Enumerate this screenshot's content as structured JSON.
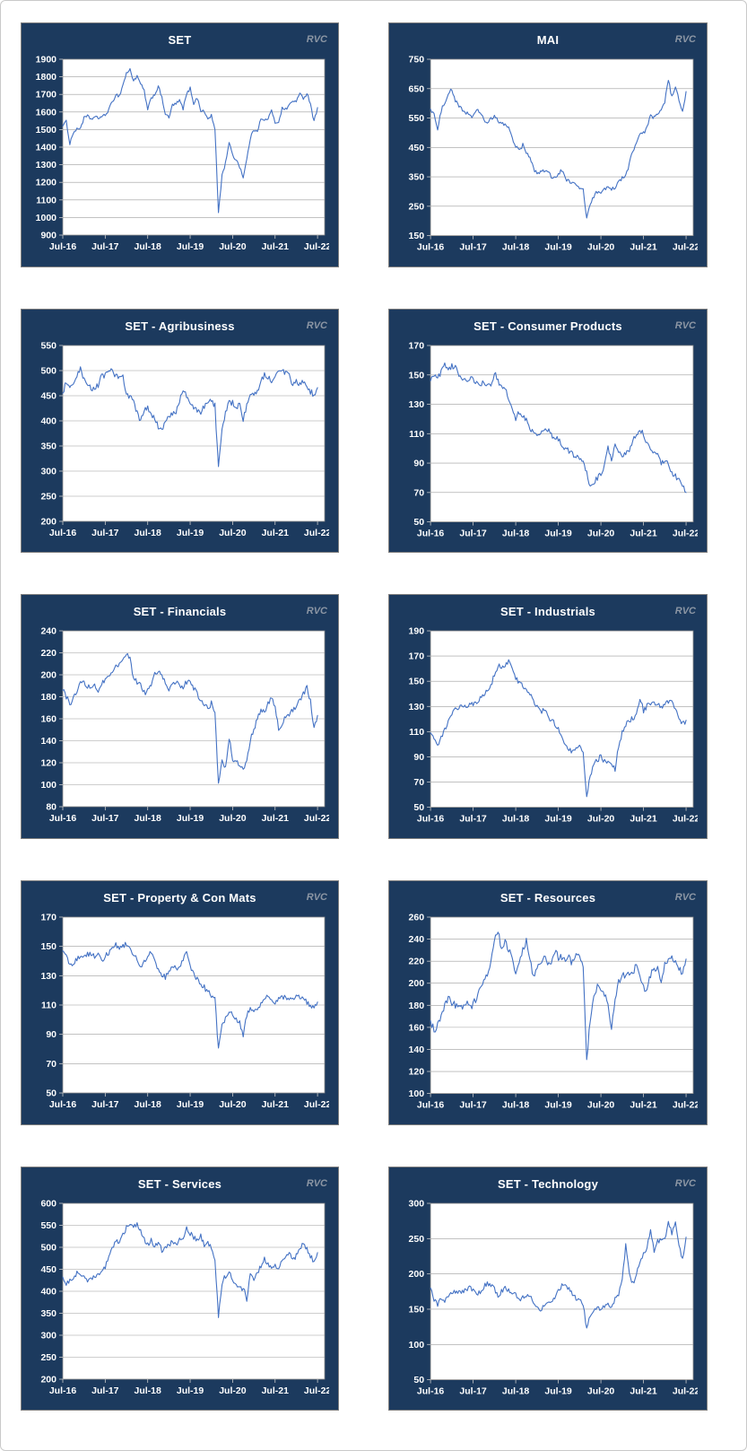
{
  "page": {
    "rvc_label": "RVC"
  },
  "x_axis": {
    "tick_labels": [
      "Jul-16",
      "Jul-17",
      "Jul-18",
      "Jul-19",
      "Jul-20",
      "Jul-21",
      "Jul-22"
    ],
    "tick_months": [
      0,
      12,
      24,
      36,
      48,
      60,
      72
    ],
    "months_total": 74
  },
  "colors": {
    "panel_bg": "#1C3A5E",
    "panel_border": "#7f7f7f",
    "plot_bg": "#FFFFFF",
    "plot_border": "#8a8a8a",
    "gridline": "#9e9e9e",
    "tick_mark": "#c9c9c9",
    "line": "#4472C4",
    "tick_text": "#FFFFFF",
    "rvc_text": "#8C96A4"
  },
  "chart_data": [
    {
      "type": "line",
      "title": "SET",
      "legend": "none",
      "grid": "horizontal",
      "x_unit": "monthly, Jul-16 to Jul-22",
      "y_min": 900,
      "y_max": 1900,
      "y_step": 100,
      "noise": 9,
      "values": [
        1520,
        1545,
        1420,
        1485,
        1500,
        1510,
        1565,
        1575,
        1560,
        1570,
        1565,
        1575,
        1580,
        1615,
        1655,
        1700,
        1690,
        1755,
        1820,
        1840,
        1780,
        1800,
        1760,
        1720,
        1610,
        1680,
        1700,
        1745,
        1680,
        1590,
        1565,
        1640,
        1645,
        1665,
        1620,
        1700,
        1735,
        1650,
        1680,
        1610,
        1600,
        1560,
        1580,
        1500,
        1030,
        1240,
        1310,
        1430,
        1350,
        1330,
        1290,
        1230,
        1330,
        1450,
        1500,
        1495,
        1560,
        1550,
        1565,
        1605,
        1540,
        1545,
        1620,
        1615,
        1640,
        1660,
        1665,
        1700,
        1680,
        1705,
        1650,
        1545,
        1625
      ]
    },
    {
      "type": "line",
      "title": "MAI",
      "legend": "none",
      "grid": "horizontal",
      "x_unit": "monthly, Jul-16 to Jul-22",
      "y_min": 150,
      "y_max": 750,
      "y_step": 100,
      "noise": 7,
      "values": [
        580,
        565,
        505,
        575,
        605,
        635,
        645,
        610,
        590,
        575,
        570,
        560,
        555,
        575,
        570,
        545,
        532,
        545,
        555,
        540,
        532,
        525,
        520,
        485,
        452,
        440,
        458,
        430,
        415,
        378,
        362,
        370,
        366,
        374,
        352,
        346,
        356,
        374,
        342,
        336,
        330,
        320,
        312,
        305,
        210,
        255,
        282,
        300,
        300,
        306,
        312,
        306,
        316,
        330,
        346,
        352,
        395,
        440,
        466,
        490,
        497,
        522,
        556,
        550,
        562,
        576,
        602,
        680,
        622,
        652,
        612,
        566,
        640
      ]
    },
    {
      "type": "line",
      "title": "SET - Agribusiness",
      "legend": "none",
      "grid": "horizontal",
      "x_unit": "monthly, Jul-16 to Jul-22",
      "y_min": 200,
      "y_max": 550,
      "y_step": 50,
      "noise": 6,
      "values": [
        455,
        478,
        462,
        470,
        488,
        502,
        480,
        470,
        466,
        462,
        472,
        488,
        490,
        498,
        505,
        488,
        490,
        486,
        452,
        448,
        440,
        415,
        398,
        420,
        425,
        412,
        402,
        388,
        380,
        398,
        408,
        412,
        420,
        442,
        460,
        448,
        436,
        425,
        420,
        418,
        428,
        438,
        442,
        430,
        307,
        380,
        415,
        435,
        437,
        428,
        432,
        402,
        430,
        448,
        452,
        458,
        482,
        492,
        488,
        478,
        492,
        505,
        498,
        495,
        488,
        470,
        478,
        472,
        478,
        468,
        458,
        452,
        466
      ]
    },
    {
      "type": "line",
      "title": "SET - Consumer Products",
      "legend": "none",
      "grid": "horizontal",
      "x_unit": "monthly, Jul-16 to Jul-22",
      "y_min": 50,
      "y_max": 170,
      "y_step": 20,
      "noise": 1.8,
      "values": [
        146,
        150,
        148,
        152,
        157,
        154,
        156,
        155,
        150,
        148,
        146,
        147,
        147,
        144,
        143,
        145,
        144,
        141,
        152,
        146,
        142,
        141,
        134,
        126,
        120,
        125,
        122,
        119,
        114,
        110,
        108,
        110,
        112,
        113,
        109,
        107,
        106,
        103,
        100,
        98,
        96,
        95,
        94,
        91,
        83,
        73,
        77,
        80,
        82,
        88,
        102,
        90,
        104,
        98,
        95,
        97,
        99,
        106,
        110,
        113,
        110,
        103,
        100,
        98,
        95,
        90,
        92,
        89,
        83,
        81,
        79,
        74,
        70
      ]
    },
    {
      "type": "line",
      "title": "SET - Financials",
      "legend": "none",
      "grid": "horizontal",
      "x_unit": "monthly, Jul-16 to Jul-22",
      "y_min": 80,
      "y_max": 240,
      "y_step": 20,
      "noise": 2.6,
      "values": [
        186,
        180,
        174,
        178,
        186,
        194,
        192,
        190,
        188,
        190,
        186,
        192,
        196,
        198,
        203,
        207,
        210,
        214,
        218,
        214,
        198,
        194,
        192,
        184,
        185,
        192,
        200,
        205,
        198,
        192,
        187,
        190,
        193,
        191,
        187,
        194,
        196,
        188,
        182,
        176,
        174,
        170,
        174,
        164,
        100,
        122,
        116,
        143,
        124,
        120,
        118,
        113,
        124,
        140,
        152,
        158,
        170,
        165,
        175,
        178,
        173,
        150,
        155,
        162,
        165,
        168,
        170,
        178,
        182,
        190,
        176,
        152,
        163
      ]
    },
    {
      "type": "line",
      "title": "SET - Industrials",
      "legend": "none",
      "grid": "horizontal",
      "x_unit": "monthly, Jul-16 to Jul-22",
      "y_min": 50,
      "y_max": 190,
      "y_step": 20,
      "noise": 2.2,
      "values": [
        109,
        104,
        100,
        106,
        112,
        118,
        124,
        128,
        130,
        131,
        130,
        131,
        132,
        134,
        136,
        140,
        144,
        147,
        155,
        163,
        160,
        163,
        166,
        160,
        152,
        150,
        146,
        144,
        140,
        134,
        130,
        127,
        126,
        123,
        119,
        116,
        113,
        106,
        101,
        96,
        94,
        96,
        100,
        92,
        57,
        76,
        82,
        88,
        90,
        87,
        85,
        83,
        80,
        98,
        110,
        116,
        119,
        121,
        123,
        136,
        127,
        130,
        132,
        133,
        131,
        130,
        132,
        134,
        135,
        128,
        122,
        116,
        119
      ]
    },
    {
      "type": "line",
      "title": "SET - Property & Con Mats",
      "legend": "none",
      "grid": "horizontal",
      "x_unit": "monthly, Jul-16 to Jul-22",
      "y_min": 50,
      "y_max": 170,
      "y_step": 20,
      "noise": 1.8,
      "values": [
        147,
        143,
        136,
        139,
        141,
        143,
        144,
        145,
        144,
        143,
        146,
        140,
        143,
        146,
        150,
        151,
        149,
        150,
        152,
        148,
        145,
        142,
        135,
        140,
        142,
        147,
        139,
        134,
        131,
        129,
        134,
        136,
        135,
        136,
        142,
        145,
        137,
        131,
        128,
        125,
        122,
        119,
        117,
        114,
        79,
        97,
        101,
        105,
        103,
        101,
        98,
        90,
        103,
        107,
        106,
        105,
        112,
        115,
        117,
        112,
        111,
        114,
        115,
        116,
        113,
        114,
        115,
        116,
        113,
        112,
        109,
        108,
        112
      ]
    },
    {
      "type": "line",
      "title": "SET - Resources",
      "legend": "none",
      "grid": "horizontal",
      "x_unit": "monthly, Jul-16 to Jul-22",
      "y_min": 100,
      "y_max": 260,
      "y_step": 20,
      "noise": 3.5,
      "values": [
        166,
        157,
        163,
        170,
        180,
        187,
        182,
        180,
        181,
        179,
        182,
        178,
        180,
        188,
        195,
        203,
        205,
        218,
        238,
        248,
        228,
        238,
        230,
        224,
        210,
        220,
        232,
        238,
        222,
        204,
        214,
        218,
        222,
        220,
        218,
        228,
        224,
        224,
        220,
        224,
        218,
        227,
        228,
        214,
        129,
        168,
        186,
        199,
        194,
        190,
        182,
        160,
        185,
        200,
        210,
        204,
        208,
        212,
        214,
        208,
        196,
        193,
        208,
        214,
        212,
        203,
        217,
        222,
        224,
        219,
        215,
        209,
        222
      ]
    },
    {
      "type": "line",
      "title": "SET - Services",
      "legend": "none",
      "grid": "horizontal",
      "x_unit": "monthly, Jul-16 to Jul-22",
      "y_min": 200,
      "y_max": 600,
      "y_step": 50,
      "noise": 6,
      "values": [
        432,
        415,
        428,
        432,
        440,
        442,
        432,
        425,
        430,
        434,
        437,
        448,
        456,
        482,
        500,
        510,
        515,
        532,
        544,
        553,
        549,
        554,
        540,
        520,
        505,
        515,
        500,
        510,
        492,
        500,
        505,
        512,
        508,
        515,
        522,
        543,
        532,
        522,
        518,
        525,
        505,
        512,
        498,
        470,
        342,
        420,
        435,
        448,
        425,
        415,
        405,
        408,
        382,
        445,
        430,
        438,
        458,
        474,
        460,
        455,
        462,
        446,
        470,
        480,
        490,
        468,
        482,
        498,
        507,
        495,
        478,
        470,
        488
      ]
    },
    {
      "type": "line",
      "title": "SET - Technology",
      "legend": "none",
      "grid": "horizontal",
      "x_unit": "monthly, Jul-16 to Jul-22",
      "y_min": 50,
      "y_max": 300,
      "y_step": 50,
      "noise": 3.5,
      "values": [
        180,
        162,
        157,
        164,
        161,
        170,
        172,
        174,
        174,
        176,
        178,
        180,
        177,
        170,
        174,
        182,
        186,
        184,
        178,
        168,
        176,
        180,
        178,
        174,
        170,
        163,
        168,
        170,
        170,
        158,
        152,
        149,
        154,
        161,
        157,
        166,
        175,
        184,
        182,
        178,
        172,
        164,
        163,
        157,
        123,
        143,
        150,
        151,
        150,
        153,
        156,
        154,
        165,
        172,
        190,
        241,
        200,
        186,
        200,
        215,
        228,
        238,
        262,
        230,
        246,
        250,
        248,
        272,
        258,
        277,
        240,
        222,
        252
      ]
    }
  ]
}
